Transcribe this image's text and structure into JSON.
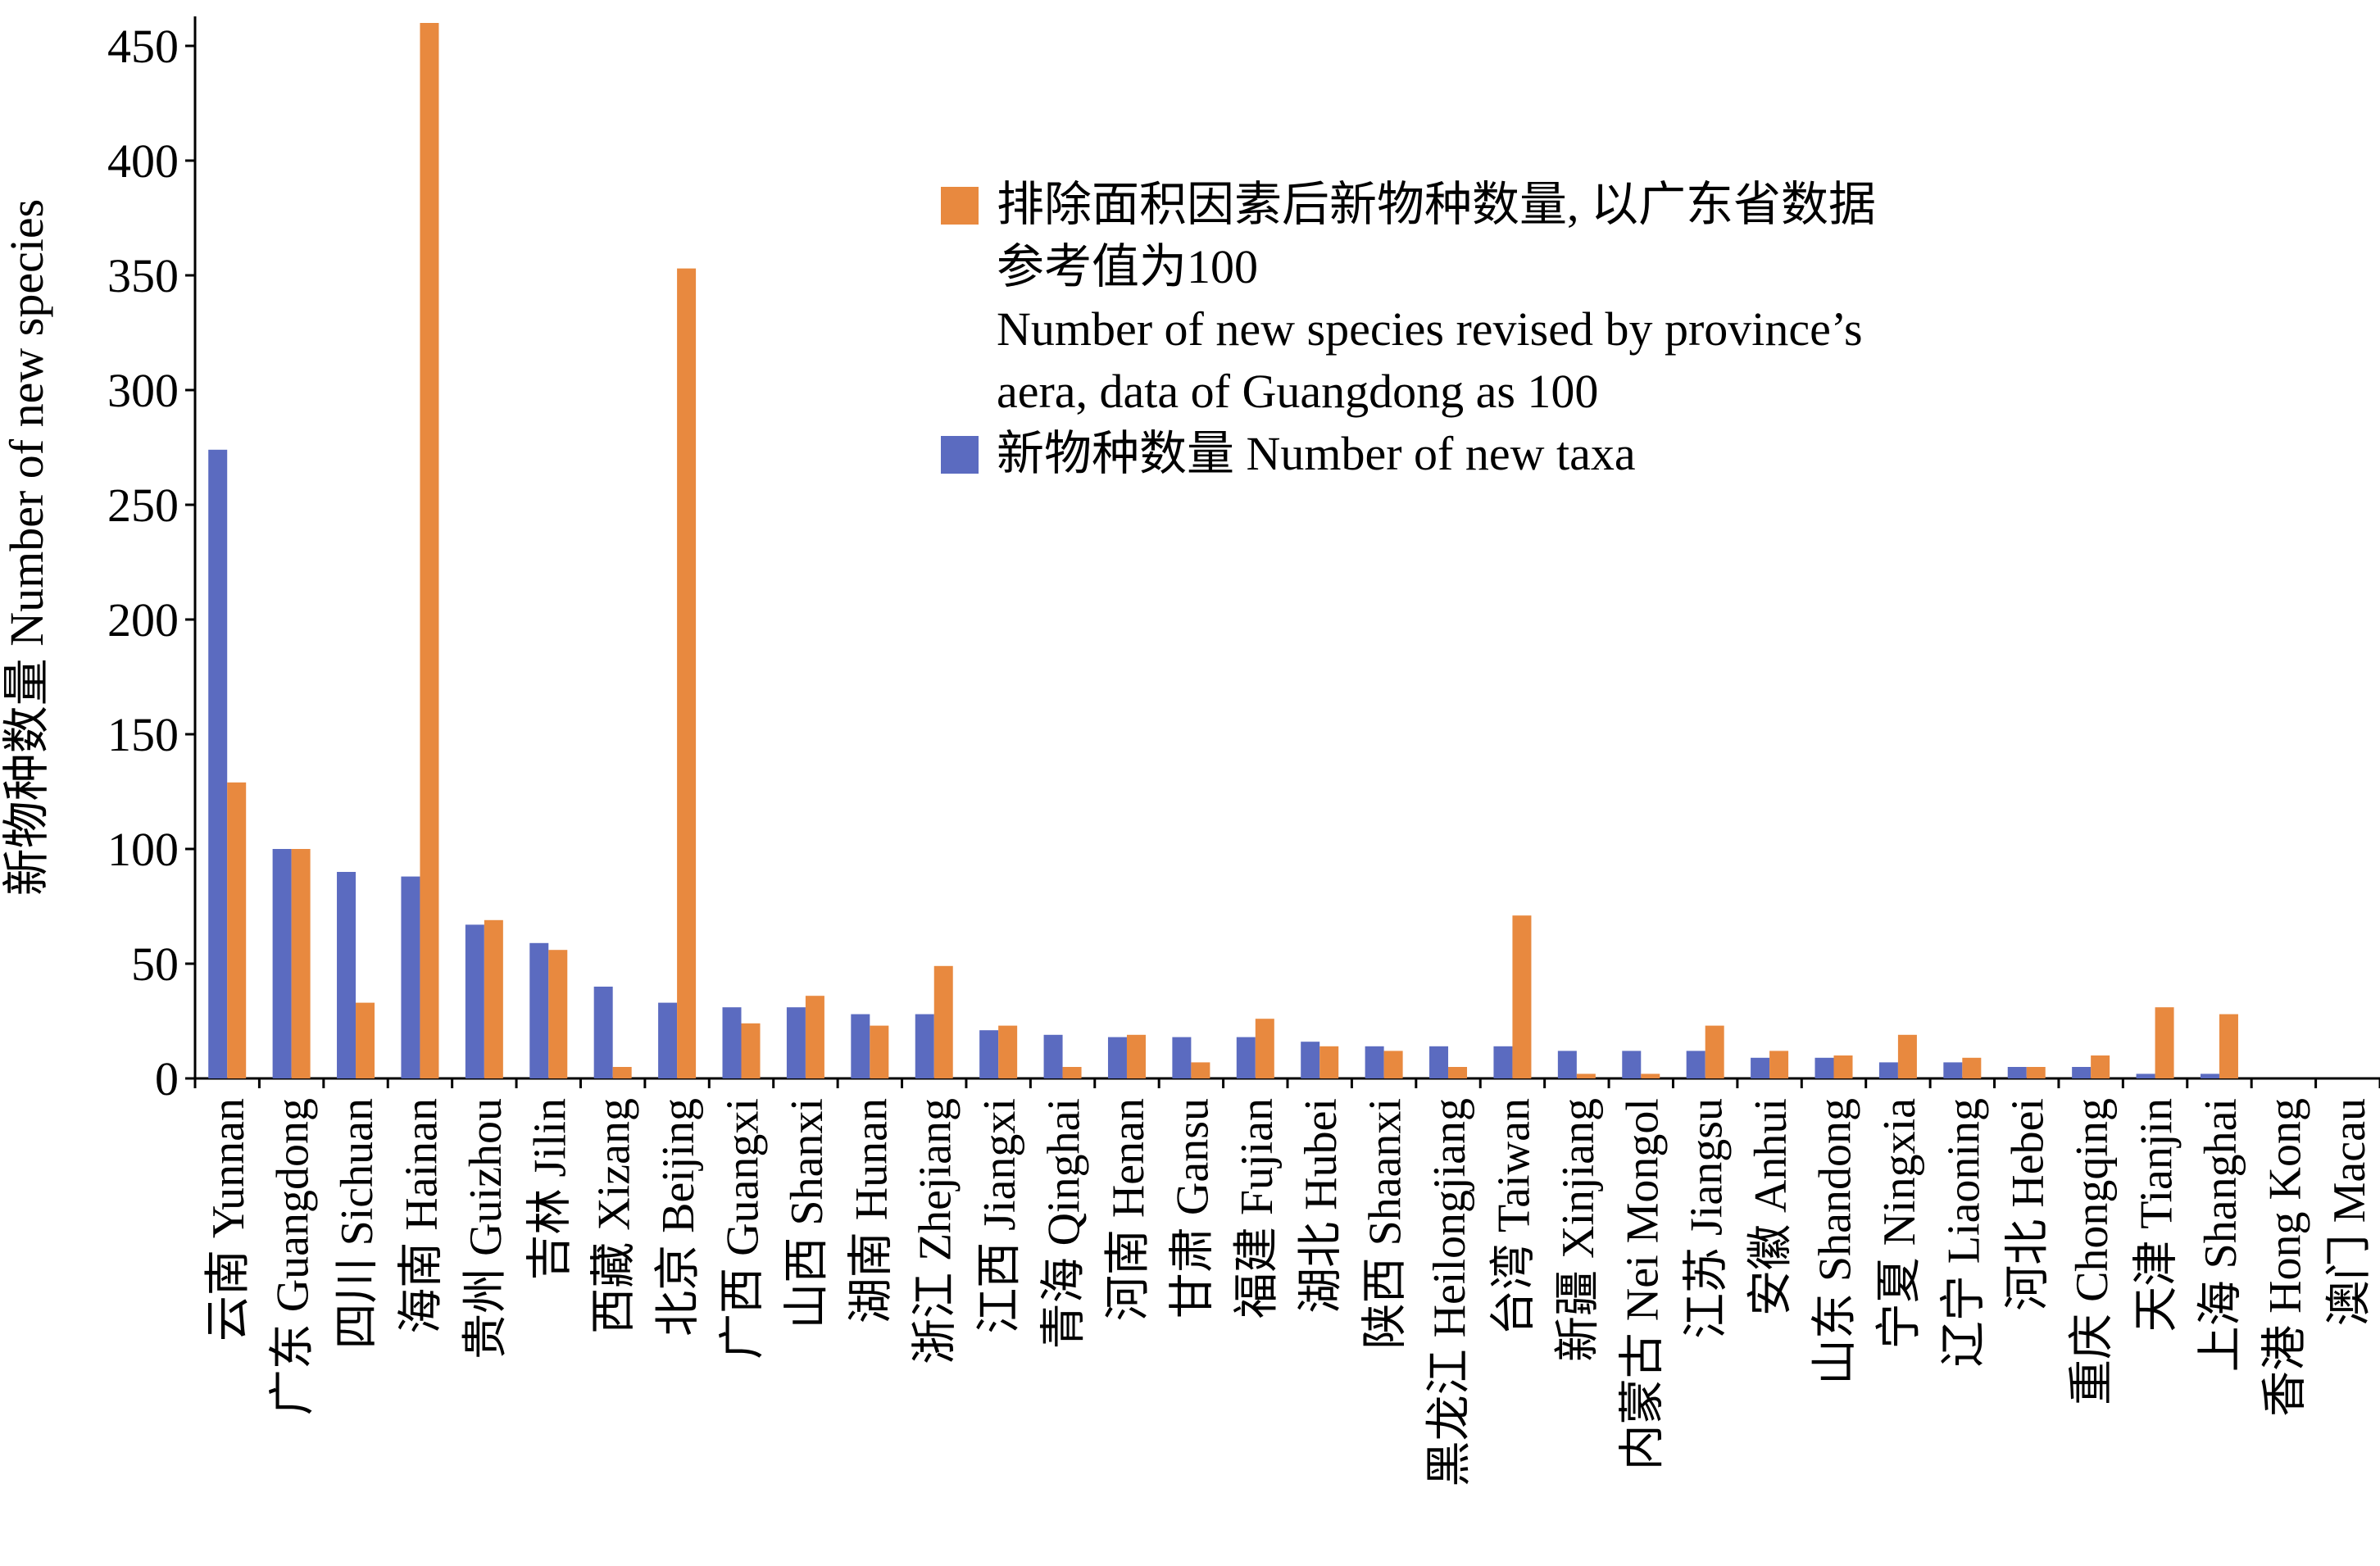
{
  "chart_data": {
    "type": "bar",
    "ylabel": "新物种数量 Number of new species",
    "ylim": [
      0,
      460
    ],
    "yticks": [
      0,
      50,
      100,
      150,
      200,
      250,
      300,
      350,
      400,
      450
    ],
    "categories": [
      "云南 Yunnan",
      "广东 Guangdong",
      "四川 Sichuan",
      "海南 Hainan",
      "贵州 Guizhou",
      "吉林 Jilin",
      "西藏 Xizang",
      "北京 Beijing",
      "广西 Guangxi",
      "山西 Shanxi",
      "湖南 Hunan",
      "浙江 Zhejiang",
      "江西 Jiangxi",
      "青海 Qinghai",
      "河南 Henan",
      "甘肃 Gansu",
      "福建 Fujian",
      "湖北 Hubei",
      "陕西 Shaanxi",
      "黑龙江 Heilongjiang",
      "台湾 Taiwan",
      "新疆 Xinjiang",
      "内蒙古 Nei Mongol",
      "江苏 Jiangsu",
      "安徽 Anhui",
      "山东 Shandong",
      "宁夏 Ningxia",
      "辽宁 Liaoning",
      "河北 Hebei",
      "重庆 Chongqing",
      "天津 Tianjin",
      "上海 Shanghai",
      "香港 Hong Kong",
      "澳门 Macau"
    ],
    "series": [
      {
        "name": "新物种数量 Number of new taxa",
        "color": "#5b6bc0",
        "values": [
          274,
          100,
          90,
          88,
          67,
          59,
          40,
          33,
          31,
          31,
          28,
          28,
          21,
          19,
          18,
          18,
          18,
          16,
          14,
          14,
          14,
          12,
          12,
          12,
          9,
          9,
          7,
          7,
          5,
          5,
          2,
          2,
          0,
          0
        ]
      },
      {
        "name": "排除面积因素后新物种数量, 以广东省数据参考值为100 Number of new species revised by province’s aera, data of Guangdong as 100",
        "color": "#e8893f",
        "values": [
          129,
          100,
          33,
          460,
          69,
          56,
          5,
          353,
          24,
          36,
          23,
          49,
          23,
          5,
          19,
          7,
          26,
          14,
          12,
          5,
          71,
          2,
          2,
          23,
          12,
          10,
          19,
          9,
          5,
          10,
          31,
          28,
          0,
          0
        ]
      }
    ],
    "legend": {
      "position": "top-right",
      "orange_lines": [
        "排除面积因素后新物种数量, 以广东省数据",
        "参考值为100",
        "Number of new species revised by province’s",
        "aera, data of Guangdong as 100"
      ],
      "blue_label": "新物种数量 Number of new taxa"
    },
    "grid": false
  }
}
